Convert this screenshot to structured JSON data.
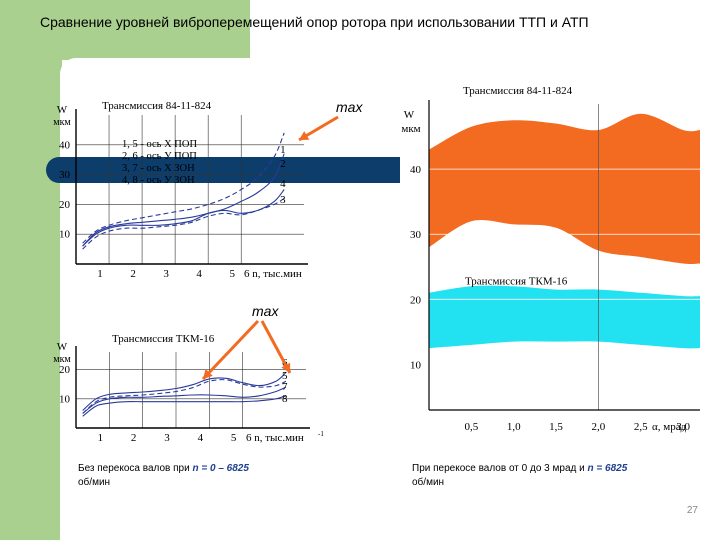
{
  "slide": {
    "title": "Сравнение уровней виброперемещений опор ротора  при использовании  ТТП и АТП",
    "page_number": "27",
    "caption_left": {
      "prefix": "Без перекоса валов при ",
      "formula": "n  =  0 – 6825",
      "suffix": "об/мин"
    },
    "caption_right": {
      "prefix": "При  перекосе валов от  0  до 3 мрад и ",
      "formula": "n  =  6825",
      "suffix": "об/мин"
    },
    "max_label_1": "max",
    "max_label_2": "max",
    "colors": {
      "sidebar": "#a9d08e",
      "navy": "#0c3d6b",
      "orange": "#f36b21",
      "cyan": "#22e2f2",
      "curve": "#2a3a9c",
      "arrow": "#f36b21"
    }
  },
  "chart_data": [
    {
      "type": "line",
      "title": "Трансмиссия 84-11-824",
      "ylabel_1": "W",
      "ylabel_2": "мкм",
      "xlabel": "6 n, тыс.мин",
      "xlim": [
        0,
        6.9
      ],
      "ylim": [
        0,
        50
      ],
      "x_ticks": [
        "1",
        "2",
        "3",
        "4",
        "5"
      ],
      "y_ticks": [
        "10",
        "20",
        "30",
        "40"
      ],
      "legend": [
        "1, 5 - ось X ПОП",
        "2, 6 - ось У ПОП",
        "3, 7 - ось X ЗОН",
        "4, 8 - ось У ЗОН"
      ],
      "series": [
        {
          "name": "1",
          "style": "dashed",
          "x": [
            0.2,
            0.6,
            1,
            1.5,
            2,
            2.5,
            3,
            3.5,
            4,
            4.5,
            5,
            5.5,
            6,
            6.3
          ],
          "y": [
            7,
            11,
            13,
            14.5,
            15.5,
            16.5,
            17.5,
            18.5,
            20,
            22,
            25,
            29,
            36,
            44
          ]
        },
        {
          "name": "2",
          "style": "solid",
          "x": [
            0.2,
            0.6,
            1,
            1.5,
            2,
            2.5,
            3,
            3.5,
            4,
            4.5,
            5,
            5.5,
            6,
            6.3
          ],
          "y": [
            6,
            10.5,
            12.5,
            13.5,
            14,
            14.5,
            15,
            15.7,
            17,
            18.5,
            21,
            24,
            29,
            37
          ]
        },
        {
          "name": "4",
          "style": "solid",
          "x": [
            0.2,
            0.6,
            1,
            1.5,
            2,
            2.5,
            3,
            3.5,
            4,
            4.5,
            5,
            5.5,
            6,
            6.3
          ],
          "y": [
            6,
            10,
            12,
            13,
            13,
            13,
            13.5,
            14.5,
            17,
            18,
            17,
            18,
            21,
            25
          ]
        },
        {
          "name": "3",
          "style": "dashed",
          "x": [
            0.2,
            0.6,
            1,
            1.5,
            2,
            2.5,
            3,
            3.5,
            4,
            4.5,
            5,
            5.5,
            6,
            6.3
          ],
          "y": [
            5,
            9,
            11,
            12,
            12,
            12.5,
            13,
            14,
            16,
            17,
            16.5,
            18,
            20,
            22
          ]
        }
      ]
    },
    {
      "type": "line",
      "title": "Трансмиссия ТКМ-16",
      "ylabel_1": "W",
      "ylabel_2": "мкм",
      "xlabel": "6 n, тыс.мин",
      "xlabel_sup": "-1",
      "xlim": [
        0,
        6.9
      ],
      "ylim": [
        0,
        26
      ],
      "x_ticks": [
        "1",
        "2",
        "3",
        "4",
        "5"
      ],
      "y_ticks": [
        "10",
        "20"
      ],
      "series": [
        {
          "name": "6",
          "style": "solid",
          "x": [
            0.2,
            0.6,
            1,
            1.5,
            2,
            2.5,
            3,
            3.5,
            4,
            4.5,
            5,
            5.5,
            6,
            6.3
          ],
          "y": [
            6,
            10,
            11.5,
            12,
            12.3,
            12.8,
            13.5,
            14.8,
            16.8,
            17,
            15.5,
            14.5,
            16,
            19
          ]
        },
        {
          "name": "5",
          "style": "dashed",
          "x": [
            0.2,
            0.6,
            1,
            1.5,
            2,
            2.5,
            3,
            3.5,
            4,
            4.5,
            5,
            5.5,
            6,
            6.3
          ],
          "y": [
            5,
            9,
            10.5,
            11,
            11.3,
            11.8,
            12.5,
            13.8,
            16,
            16.5,
            15,
            14,
            14.5,
            16
          ]
        },
        {
          "name": "7",
          "style": "solid",
          "x": [
            0.2,
            0.6,
            1,
            1.5,
            2,
            2.5,
            3,
            3.5,
            4,
            4.5,
            5,
            5.5,
            6,
            6.3
          ],
          "y": [
            5,
            8.5,
            10,
            10.5,
            10.5,
            10.8,
            11,
            11.3,
            11.3,
            11,
            10.5,
            11,
            12.5,
            14
          ]
        },
        {
          "name": "8",
          "style": "solid",
          "x": [
            0.2,
            0.6,
            1,
            1.5,
            2,
            2.5,
            3,
            3.5,
            4,
            4.5,
            5,
            5.5,
            6,
            6.3
          ],
          "y": [
            4,
            7.5,
            8.5,
            9,
            9,
            9,
            9,
            9,
            9,
            9,
            9,
            9.3,
            10,
            11
          ]
        }
      ]
    },
    {
      "type": "area",
      "ylabel_1": "W",
      "ylabel_2": "мкм",
      "xlabel": "α, мрад",
      "xlim": [
        0,
        3.2
      ],
      "ylim": [
        3,
        50
      ],
      "x_ticks": [
        "0,5",
        "1,0",
        "1,5",
        "2,0",
        "2,5",
        "3,0"
      ],
      "y_ticks": [
        "10",
        "20",
        "30",
        "40"
      ],
      "series": [
        {
          "name": "Трансмиссия 84-11-824",
          "x": [
            0,
            0.5,
            1.0,
            1.5,
            2.0,
            2.5,
            3.0,
            3.2
          ],
          "upper": [
            43,
            46.5,
            47.5,
            47,
            46,
            48.5,
            46,
            46
          ],
          "lower": [
            28,
            32,
            31.5,
            31,
            27.5,
            26.5,
            25.5,
            25.5
          ]
        },
        {
          "name": "Трансмиссия ТКМ-16",
          "x": [
            0,
            0.5,
            1.0,
            1.5,
            2.0,
            2.5,
            3.0,
            3.2
          ],
          "upper": [
            21,
            22,
            22,
            21.5,
            21.5,
            21,
            20.5,
            20.5
          ],
          "lower": [
            12.5,
            13,
            13.5,
            13.5,
            13.5,
            13,
            12.5,
            12.5
          ]
        }
      ]
    }
  ]
}
